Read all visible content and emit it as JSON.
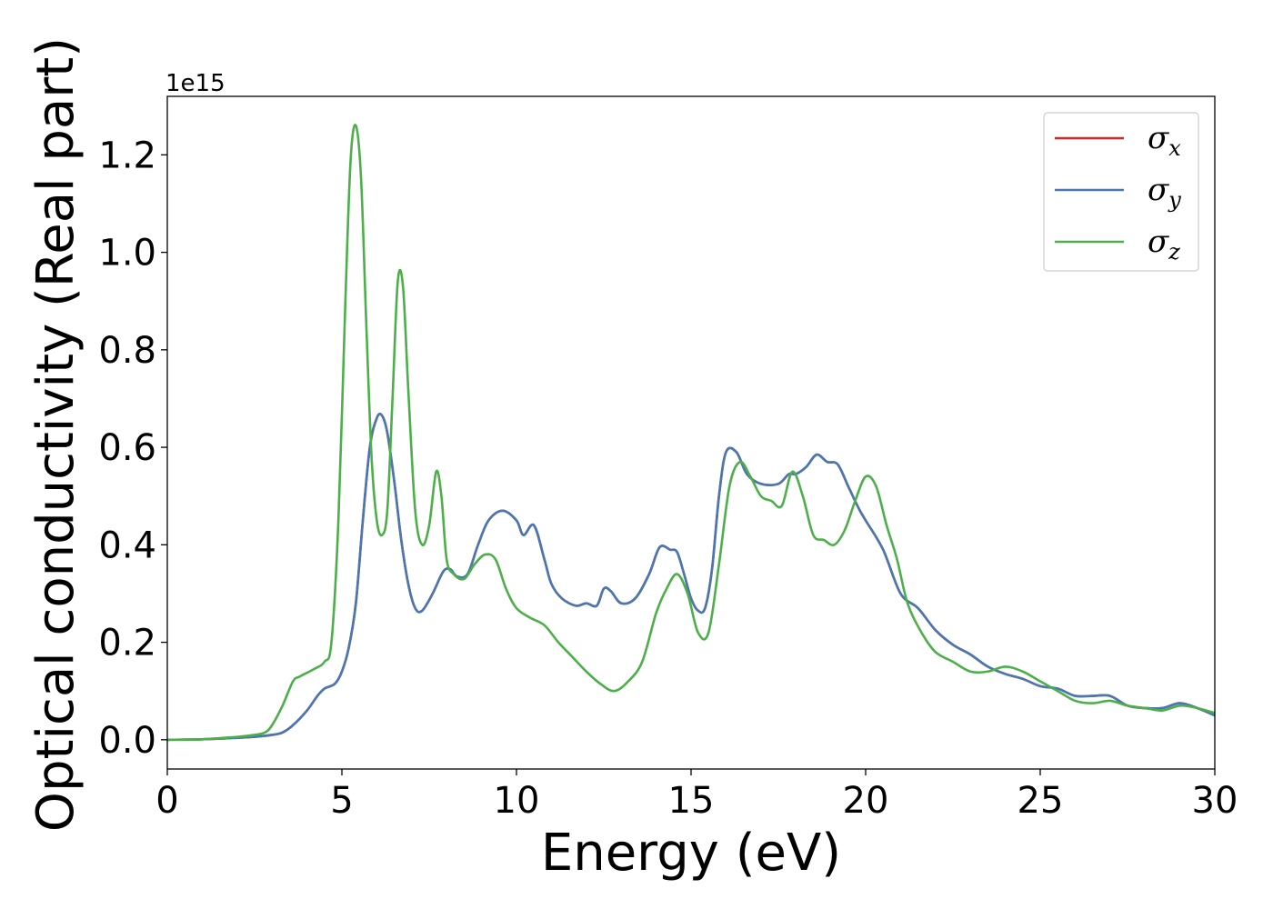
{
  "chart_data": {
    "type": "line",
    "title": "",
    "xlabel": "Energy (eV)",
    "ylabel": "Optical conductivity (Real part)",
    "y_offset_label": "1e15",
    "xlim": [
      0,
      30
    ],
    "ylim": [
      -0.06,
      1.32
    ],
    "xticks": [
      0,
      5,
      10,
      15,
      20,
      25,
      30
    ],
    "xtick_labels": [
      "0",
      "5",
      "10",
      "15",
      "20",
      "25",
      "30"
    ],
    "yticks": [
      0.0,
      0.2,
      0.4,
      0.6,
      0.8,
      1.0,
      1.2
    ],
    "ytick_labels": [
      "0.0",
      "0.2",
      "0.4",
      "0.6",
      "0.8",
      "1.0",
      "1.2"
    ],
    "grid": false,
    "legend": "top-right",
    "series": [
      {
        "name": "σx",
        "symbol": "σ",
        "subscript": "x",
        "color": "#d62728",
        "x": [
          0,
          1,
          2,
          2.5,
          3,
          3.3,
          3.6,
          4,
          4.3,
          4.5,
          4.8,
          5,
          5.2,
          5.4,
          5.6,
          5.8,
          6,
          6.15,
          6.3,
          6.5,
          6.7,
          6.9,
          7.1,
          7.3,
          7.6,
          7.9,
          8.1,
          8.3,
          8.6,
          8.9,
          9.2,
          9.6,
          10,
          10.2,
          10.5,
          10.8,
          11,
          11.3,
          11.7,
          12,
          12.3,
          12.5,
          12.7,
          13,
          13.4,
          13.8,
          14.1,
          14.4,
          14.6,
          14.8,
          15,
          15.2,
          15.4,
          15.6,
          15.8,
          16,
          16.3,
          16.6,
          17,
          17.5,
          17.8,
          18,
          18.3,
          18.6,
          18.9,
          19.2,
          19.5,
          19.8,
          20,
          20.5,
          21,
          21.5,
          22,
          22.5,
          23,
          23.5,
          24,
          24.5,
          25,
          25.5,
          26,
          26.5,
          27,
          27.5,
          28,
          28.5,
          29,
          29.5,
          30
        ],
        "y": [
          0,
          0.001,
          0.004,
          0.006,
          0.01,
          0.015,
          0.03,
          0.06,
          0.09,
          0.105,
          0.115,
          0.14,
          0.19,
          0.28,
          0.45,
          0.6,
          0.66,
          0.665,
          0.63,
          0.53,
          0.41,
          0.32,
          0.27,
          0.265,
          0.3,
          0.345,
          0.35,
          0.335,
          0.34,
          0.4,
          0.45,
          0.47,
          0.45,
          0.42,
          0.44,
          0.37,
          0.32,
          0.29,
          0.275,
          0.28,
          0.275,
          0.31,
          0.305,
          0.28,
          0.29,
          0.34,
          0.395,
          0.39,
          0.385,
          0.34,
          0.29,
          0.265,
          0.27,
          0.35,
          0.5,
          0.59,
          0.59,
          0.545,
          0.525,
          0.525,
          0.545,
          0.545,
          0.56,
          0.585,
          0.57,
          0.565,
          0.52,
          0.475,
          0.45,
          0.39,
          0.3,
          0.27,
          0.225,
          0.195,
          0.175,
          0.15,
          0.135,
          0.125,
          0.11,
          0.105,
          0.09,
          0.09,
          0.09,
          0.07,
          0.065,
          0.065,
          0.075,
          0.065,
          0.05
        ]
      },
      {
        "name": "σy",
        "symbol": "σ",
        "subscript": "y",
        "color": "#4878b4",
        "x": [
          0,
          1,
          2,
          2.5,
          3,
          3.3,
          3.6,
          4,
          4.3,
          4.5,
          4.8,
          5,
          5.2,
          5.4,
          5.6,
          5.8,
          6,
          6.15,
          6.3,
          6.5,
          6.7,
          6.9,
          7.1,
          7.3,
          7.6,
          7.9,
          8.1,
          8.3,
          8.6,
          8.9,
          9.2,
          9.6,
          10,
          10.2,
          10.5,
          10.8,
          11,
          11.3,
          11.7,
          12,
          12.3,
          12.5,
          12.7,
          13,
          13.4,
          13.8,
          14.1,
          14.4,
          14.6,
          14.8,
          15,
          15.2,
          15.4,
          15.6,
          15.8,
          16,
          16.3,
          16.6,
          17,
          17.5,
          17.8,
          18,
          18.3,
          18.6,
          18.9,
          19.2,
          19.5,
          19.8,
          20,
          20.5,
          21,
          21.5,
          22,
          22.5,
          23,
          23.5,
          24,
          24.5,
          25,
          25.5,
          26,
          26.5,
          27,
          27.5,
          28,
          28.5,
          29,
          29.5,
          30
        ],
        "y": [
          0,
          0.001,
          0.004,
          0.006,
          0.01,
          0.015,
          0.03,
          0.06,
          0.09,
          0.105,
          0.115,
          0.14,
          0.19,
          0.28,
          0.45,
          0.6,
          0.66,
          0.665,
          0.63,
          0.53,
          0.41,
          0.32,
          0.27,
          0.265,
          0.3,
          0.345,
          0.35,
          0.335,
          0.34,
          0.4,
          0.45,
          0.47,
          0.45,
          0.42,
          0.44,
          0.37,
          0.32,
          0.29,
          0.275,
          0.28,
          0.275,
          0.31,
          0.305,
          0.28,
          0.29,
          0.34,
          0.395,
          0.39,
          0.385,
          0.34,
          0.29,
          0.265,
          0.27,
          0.35,
          0.5,
          0.59,
          0.59,
          0.545,
          0.525,
          0.525,
          0.545,
          0.545,
          0.56,
          0.585,
          0.57,
          0.565,
          0.52,
          0.475,
          0.45,
          0.39,
          0.3,
          0.27,
          0.225,
          0.195,
          0.175,
          0.15,
          0.135,
          0.125,
          0.11,
          0.105,
          0.09,
          0.09,
          0.09,
          0.07,
          0.065,
          0.065,
          0.075,
          0.065,
          0.05
        ]
      },
      {
        "name": "σz",
        "symbol": "σ",
        "subscript": "z",
        "color": "#4daf4a",
        "x": [
          0,
          1,
          2,
          2.5,
          2.8,
          3,
          3.3,
          3.6,
          3.8,
          4.2,
          4.5,
          4.7,
          4.9,
          5.1,
          5.25,
          5.4,
          5.55,
          5.7,
          5.85,
          6,
          6.15,
          6.3,
          6.45,
          6.6,
          6.75,
          6.9,
          7.1,
          7.3,
          7.5,
          7.7,
          7.85,
          8,
          8.2,
          8.5,
          8.8,
          9.1,
          9.4,
          9.7,
          10,
          10.4,
          10.8,
          11.2,
          11.6,
          12,
          12.4,
          12.8,
          13.2,
          13.6,
          14,
          14.3,
          14.6,
          14.9,
          15.2,
          15.5,
          15.8,
          16.1,
          16.4,
          16.7,
          17,
          17.3,
          17.6,
          17.9,
          18.2,
          18.5,
          18.8,
          19.1,
          19.4,
          19.7,
          20,
          20.3,
          20.6,
          20.9,
          21.2,
          21.6,
          22,
          22.5,
          23,
          23.5,
          24,
          24.5,
          25,
          25.5,
          26,
          26.5,
          27,
          27.5,
          28,
          28.5,
          29,
          29.5,
          30
        ],
        "y": [
          0,
          0.001,
          0.006,
          0.01,
          0.015,
          0.03,
          0.07,
          0.12,
          0.13,
          0.145,
          0.16,
          0.2,
          0.45,
          0.9,
          1.19,
          1.26,
          1.15,
          0.85,
          0.58,
          0.45,
          0.42,
          0.47,
          0.7,
          0.94,
          0.93,
          0.72,
          0.47,
          0.4,
          0.44,
          0.55,
          0.5,
          0.37,
          0.34,
          0.33,
          0.36,
          0.38,
          0.37,
          0.31,
          0.27,
          0.25,
          0.235,
          0.2,
          0.17,
          0.14,
          0.115,
          0.1,
          0.12,
          0.16,
          0.26,
          0.31,
          0.34,
          0.3,
          0.22,
          0.22,
          0.36,
          0.52,
          0.57,
          0.54,
          0.5,
          0.49,
          0.48,
          0.55,
          0.5,
          0.42,
          0.41,
          0.4,
          0.43,
          0.49,
          0.54,
          0.52,
          0.44,
          0.37,
          0.28,
          0.22,
          0.18,
          0.16,
          0.14,
          0.14,
          0.15,
          0.14,
          0.12,
          0.1,
          0.08,
          0.075,
          0.08,
          0.07,
          0.065,
          0.06,
          0.07,
          0.065,
          0.055
        ]
      }
    ]
  }
}
